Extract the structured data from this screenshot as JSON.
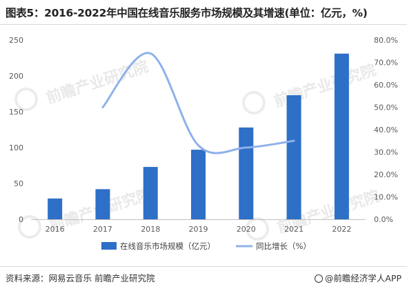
{
  "title": "图表5：2016-2022年中国在线音乐服务市场规模及其增速(单位：亿元，%)",
  "source": "资料来源：网易云音乐 前瞻产业研究院",
  "brand": "@前瞻经济学人APP",
  "watermark_text": "前瞻产业研究院",
  "colors": {
    "bar": "#2e6fc7",
    "line": "#8fb1ea",
    "axis": "#bfbfbf",
    "text": "#595959"
  },
  "chart_data": {
    "type": "bar",
    "categories": [
      "2016",
      "2017",
      "2018",
      "2019",
      "2020",
      "2021",
      "2022"
    ],
    "series": [
      {
        "name": "在线音乐市场规模（亿元）",
        "type": "bar",
        "axis": "left",
        "values": [
          29,
          42,
          73,
          97,
          128,
          173,
          231
        ]
      },
      {
        "name": "同比增长（%）",
        "type": "line",
        "axis": "right",
        "values": [
          null,
          50.0,
          74.0,
          33.0,
          32.0,
          35.0,
          null
        ]
      }
    ],
    "y_left": {
      "min": 0,
      "max": 250,
      "ticks": [
        "0",
        "50",
        "100",
        "150",
        "200",
        "250"
      ]
    },
    "y_right": {
      "min": 0,
      "max": 80,
      "ticks": [
        "0.0%",
        "10.0%",
        "20.0%",
        "30.0%",
        "40.0%",
        "50.0%",
        "60.0%",
        "70.0%",
        "80.0%"
      ]
    },
    "legend_position": "bottom",
    "grid": false
  }
}
